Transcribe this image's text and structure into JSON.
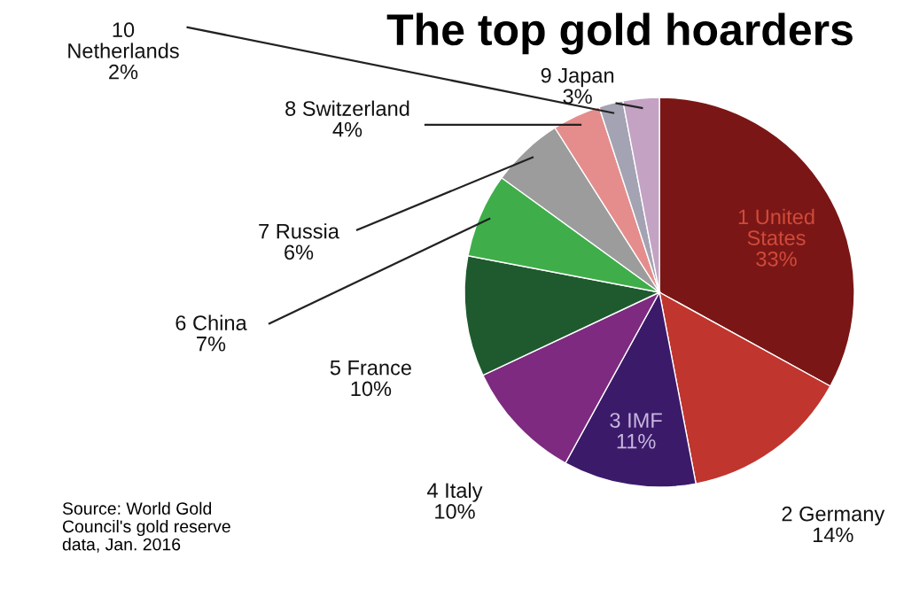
{
  "chart_data": {
    "type": "pie",
    "title": "The top gold hoarders",
    "categories": [
      "1 United\nStates",
      "2 Germany",
      "3 IMF",
      "4 Italy",
      "5 France",
      "6 China",
      "7 Russia",
      "8 Switzerland",
      "10\nNetherlands",
      "9 Japan"
    ],
    "values": [
      33,
      14,
      11,
      10,
      10,
      7,
      6,
      4,
      2,
      3
    ],
    "value_labels": [
      "33%",
      "14%",
      "11%",
      "10%",
      "10%",
      "7%",
      "6%",
      "4%",
      "2%",
      "3%"
    ],
    "colors": [
      "#7a1716",
      "#c0352e",
      "#3b1a6a",
      "#7d2a80",
      "#1e5a2e",
      "#3fae4a",
      "#9c9c9c",
      "#e58d8d",
      "#a3a3b3",
      "#c3a2c3"
    ],
    "data_labels": true,
    "annotations": [
      "Source: World Gold\nCouncil's gold reserve\ndata, Jan. 2016"
    ]
  }
}
